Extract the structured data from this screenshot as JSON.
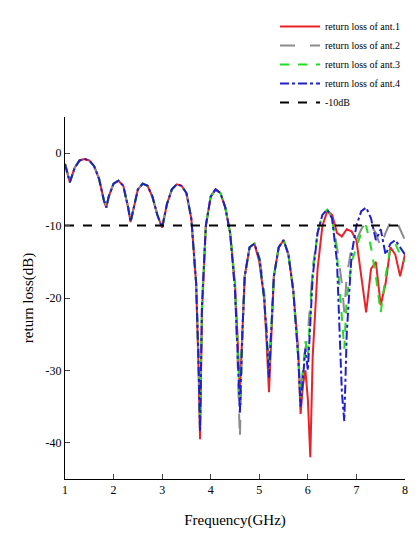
{
  "chart_data": {
    "type": "line",
    "x_label": "Frequency(GHz)",
    "y_label": "return loss(dB)",
    "x": [
      1.0,
      1.1,
      1.2,
      1.3,
      1.4,
      1.5,
      1.6,
      1.7,
      1.8,
      1.85,
      1.9,
      2.0,
      2.1,
      2.2,
      2.3,
      2.35,
      2.4,
      2.5,
      2.6,
      2.7,
      2.8,
      2.9,
      3.0,
      3.1,
      3.2,
      3.3,
      3.4,
      3.5,
      3.6,
      3.7,
      3.75,
      3.78,
      3.82,
      3.9,
      4.0,
      4.1,
      4.2,
      4.3,
      4.4,
      4.5,
      4.55,
      4.6,
      4.65,
      4.7,
      4.8,
      4.9,
      5.0,
      5.1,
      5.15,
      5.2,
      5.25,
      5.3,
      5.4,
      5.5,
      5.6,
      5.7,
      5.8,
      5.85,
      5.9,
      5.95,
      6.0,
      6.05,
      6.1,
      6.2,
      6.3,
      6.4,
      6.5,
      6.6,
      6.7,
      6.75,
      6.8,
      6.9,
      7.0,
      7.1,
      7.2,
      7.3,
      7.4,
      7.5,
      7.6,
      7.7,
      7.8,
      7.9,
      8.0
    ],
    "series": [
      {
        "name": "return loss of ant.1",
        "color": "#e8232a",
        "line_style": "solid",
        "values": [
          -1.5,
          -4,
          -2,
          -1,
          -0.8,
          -1,
          -1.8,
          -3.5,
          -6.5,
          -7.5,
          -6,
          -4.2,
          -3.8,
          -4.5,
          -7.5,
          -9.5,
          -8,
          -5,
          -4.2,
          -4.5,
          -6,
          -8.5,
          -10.3,
          -7,
          -5,
          -4.3,
          -4.5,
          -5.5,
          -9,
          -18,
          -30,
          -39.5,
          -22,
          -10,
          -6,
          -5,
          -5.5,
          -7.5,
          -11,
          -18,
          -25,
          -33,
          -25,
          -17,
          -13,
          -12.5,
          -15,
          -20,
          -26,
          -33,
          -25,
          -17,
          -13,
          -12,
          -14,
          -19,
          -27,
          -36,
          -32,
          -30,
          -34,
          -42,
          -28,
          -16,
          -10,
          -8,
          -8.5,
          -11,
          -11.5,
          -11,
          -10.5,
          -10.8,
          -12,
          -17,
          -22,
          -16,
          -15,
          -21,
          -18,
          -13,
          -14,
          -17,
          -14
        ]
      },
      {
        "name": "return loss of ant.2",
        "color": "#8c8c8c",
        "line_style": "longdash",
        "values": [
          -1.5,
          -4,
          -2,
          -1,
          -0.8,
          -1,
          -1.8,
          -3.5,
          -6.5,
          -7.5,
          -6,
          -4.2,
          -3.8,
          -4.5,
          -7.5,
          -9.5,
          -8,
          -5,
          -4.2,
          -4.5,
          -6,
          -8.5,
          -10.3,
          -7,
          -5,
          -4.3,
          -4.5,
          -5.5,
          -9,
          -18,
          -28,
          -37,
          -21,
          -10,
          -6,
          -5,
          -5.5,
          -7.5,
          -11,
          -19,
          -28,
          -39.5,
          -26,
          -17,
          -13,
          -12.5,
          -14,
          -19,
          -24,
          -29,
          -24,
          -17,
          -13,
          -12,
          -14,
          -19,
          -28,
          -33,
          -30,
          -27,
          -25,
          -20,
          -16,
          -11,
          -8.5,
          -7.8,
          -9,
          -13,
          -18,
          -22,
          -17,
          -13,
          -12,
          -10.5,
          -9.5,
          -10,
          -11,
          -13,
          -11,
          -9.5,
          -9,
          -10.5,
          -12
        ]
      },
      {
        "name": "return loss of ant.3",
        "color": "#22dd22",
        "line_style": "dash",
        "values": [
          -1.5,
          -4,
          -2,
          -1,
          -0.8,
          -1,
          -1.8,
          -3.5,
          -6.5,
          -7.5,
          -6,
          -4.2,
          -3.8,
          -4.5,
          -7.5,
          -9.5,
          -8,
          -5,
          -4.2,
          -4.5,
          -6,
          -8.5,
          -10.3,
          -7,
          -5,
          -4.3,
          -4.5,
          -5.5,
          -9,
          -18,
          -29,
          -38,
          -21,
          -10,
          -6,
          -5,
          -5.5,
          -7.5,
          -11,
          -18,
          -26,
          -34,
          -25,
          -17,
          -13,
          -12.5,
          -14.5,
          -20,
          -25,
          -30,
          -24,
          -17,
          -13,
          -12,
          -14,
          -19,
          -28,
          -34,
          -30,
          -26,
          -28,
          -22,
          -16,
          -11,
          -8.5,
          -7.8,
          -9,
          -14,
          -22,
          -27,
          -20,
          -15,
          -13,
          -11,
          -10,
          -13,
          -17,
          -22,
          -17,
          -13,
          -12.5,
          -14,
          -15
        ]
      },
      {
        "name": "return loss of ant.4",
        "color": "#1f1fcc",
        "line_style": "dashdot",
        "values": [
          -1.5,
          -4,
          -2,
          -1,
          -0.8,
          -1,
          -1.8,
          -3.5,
          -6.5,
          -7.5,
          -6,
          -4.2,
          -3.8,
          -4.5,
          -7.5,
          -9.5,
          -8,
          -5,
          -4.2,
          -4.5,
          -6,
          -8.5,
          -10.3,
          -7,
          -5,
          -4.3,
          -4.5,
          -5.5,
          -9,
          -18,
          -29,
          -38.5,
          -21,
          -10,
          -6,
          -5,
          -5.5,
          -7.5,
          -11,
          -19,
          -27,
          -36,
          -25,
          -17,
          -13,
          -12.5,
          -14.5,
          -20,
          -25,
          -31,
          -24,
          -17,
          -13,
          -12,
          -14,
          -19,
          -28,
          -35,
          -31,
          -27,
          -30,
          -24,
          -17,
          -11,
          -8.5,
          -7.8,
          -9,
          -15,
          -33,
          -37,
          -25,
          -14,
          -10,
          -8,
          -7.5,
          -9,
          -12,
          -10.5,
          -14,
          -12.5,
          -12,
          -13,
          -14
        ]
      },
      {
        "name": "-10dB",
        "color": "#000000",
        "line_style": "dash",
        "x": [
          1,
          8
        ],
        "values": [
          -10,
          -10
        ]
      }
    ],
    "xlim": [
      1,
      8
    ],
    "xticks": [
      1,
      2,
      3,
      4,
      5,
      6,
      7,
      8
    ],
    "ylim": [
      -45,
      5
    ],
    "yticks": [
      -40,
      -30,
      -20,
      -10,
      0
    ],
    "grid": false,
    "legend": "top right"
  }
}
